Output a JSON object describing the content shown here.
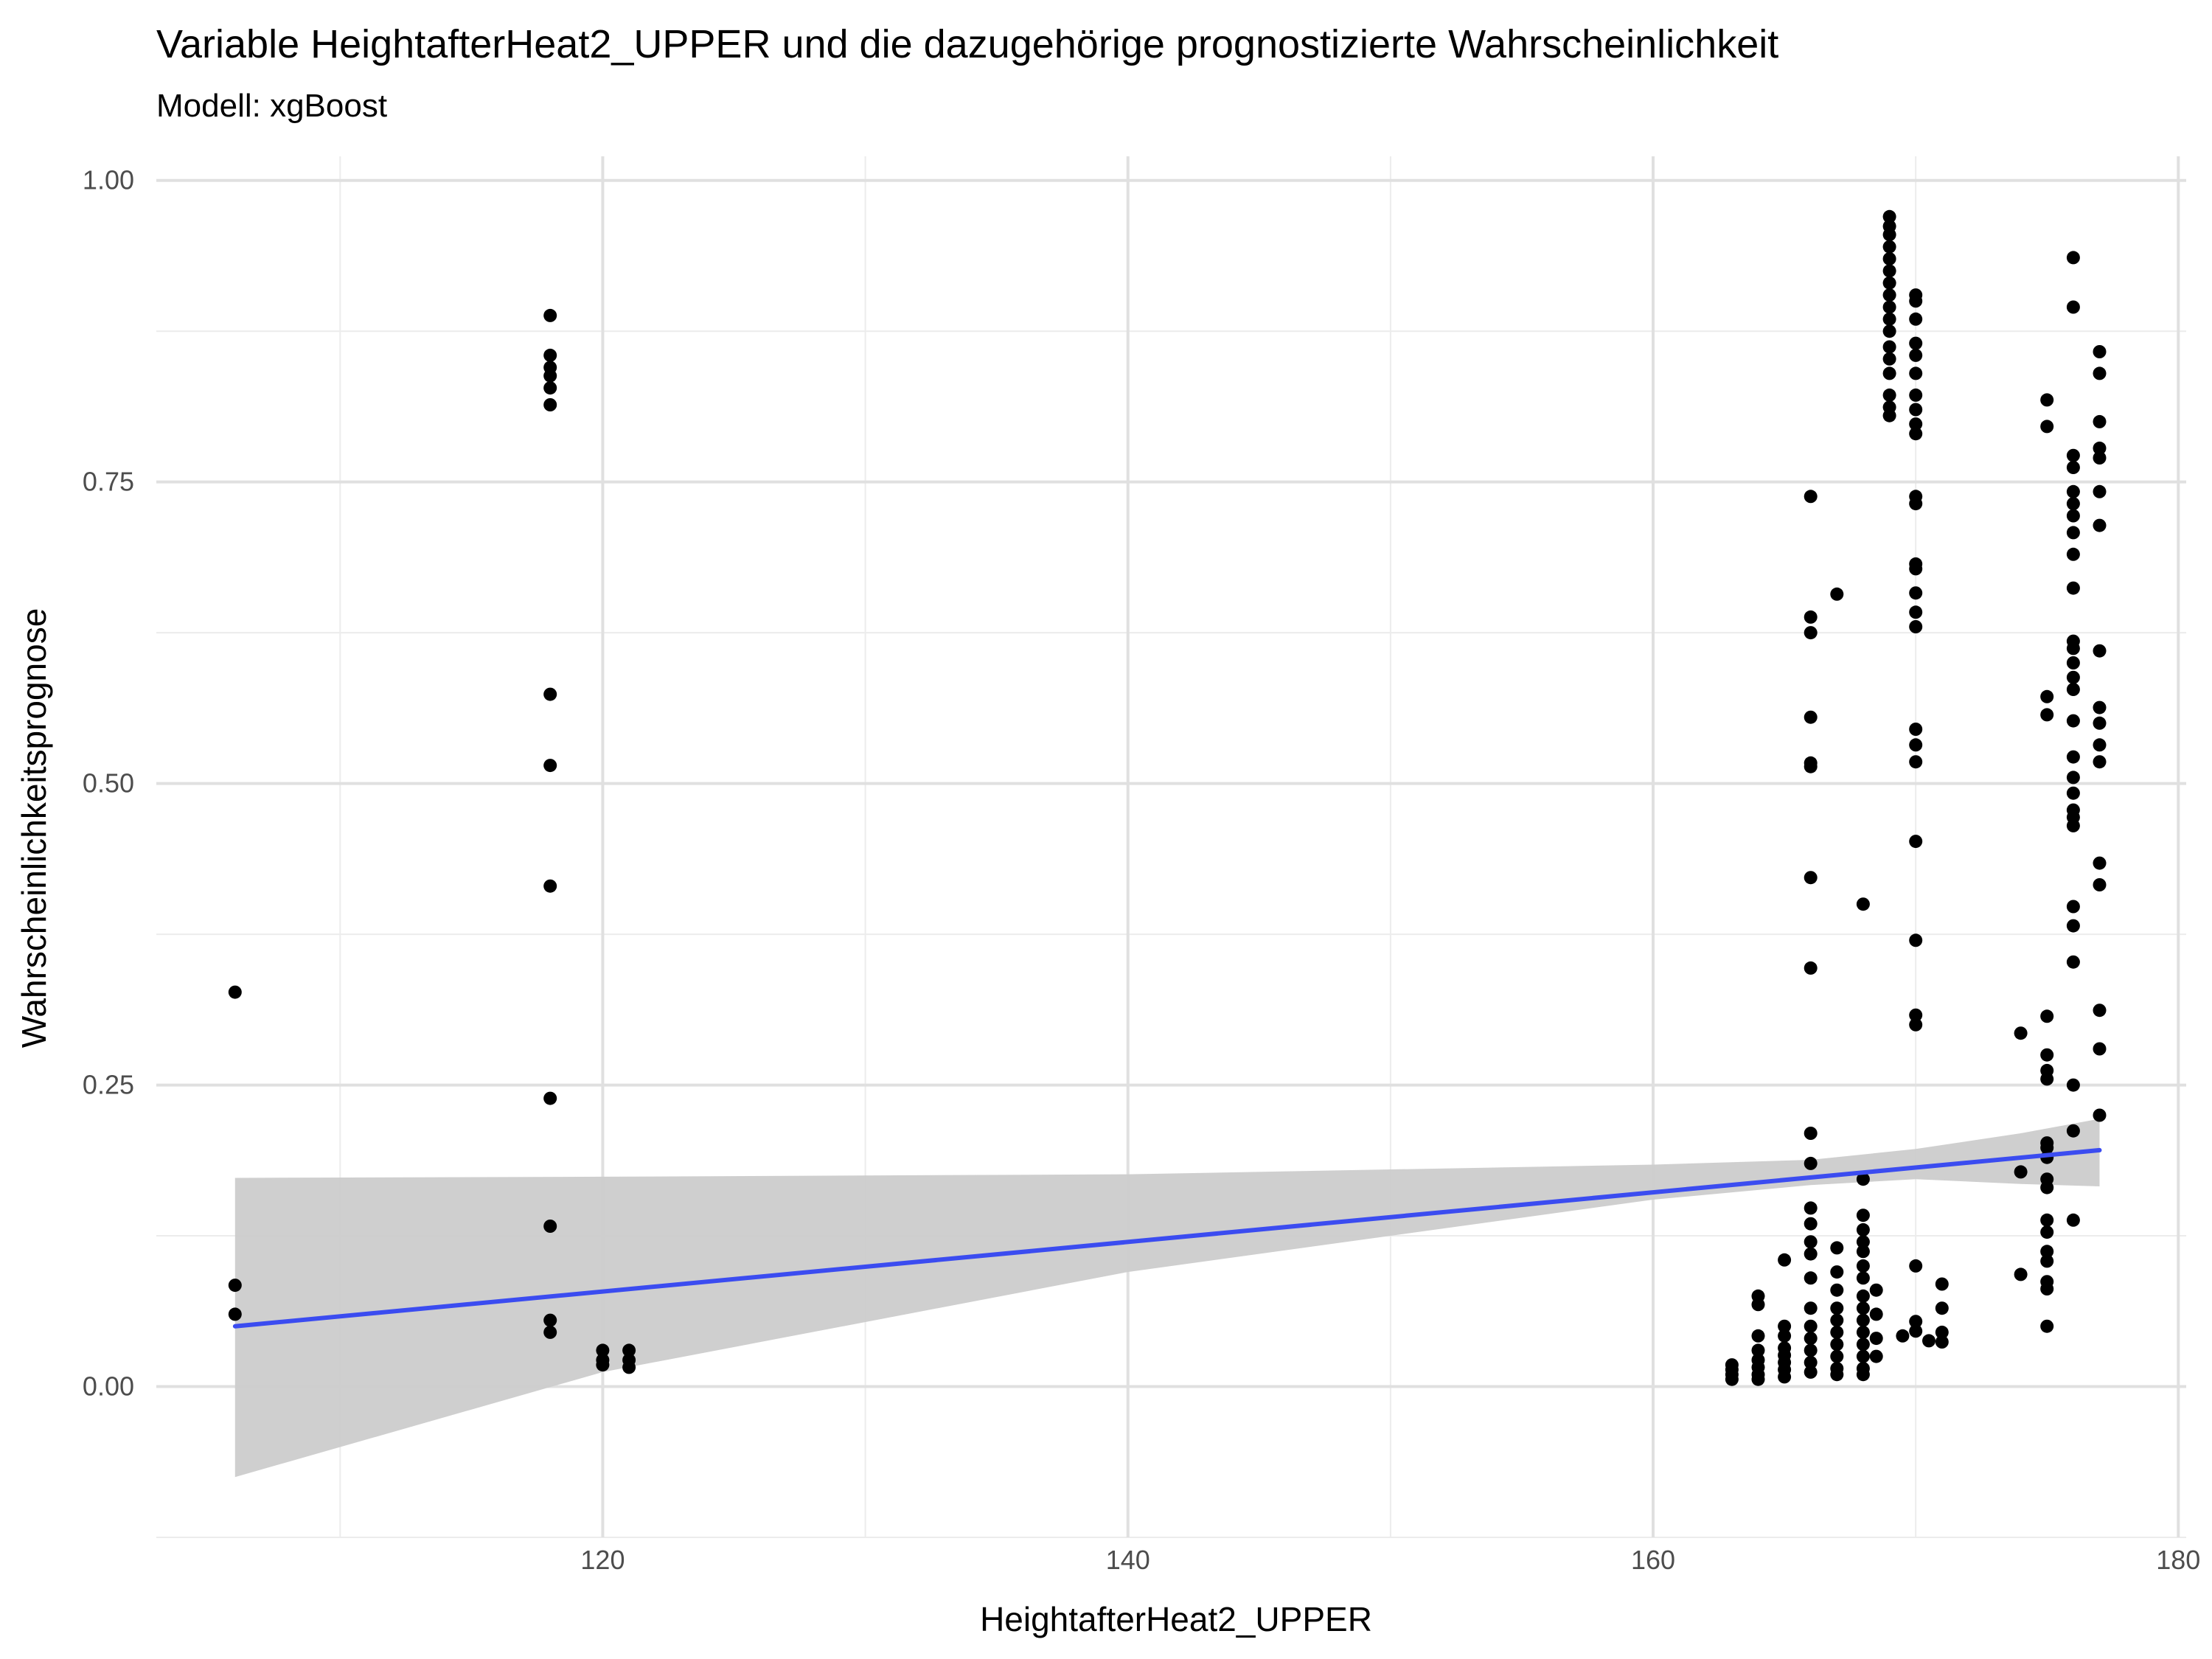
{
  "chart_data": {
    "type": "scatter",
    "title": "Variable HeightafterHeat2_UPPER und die dazugehörige prognostizierte Wahrscheinlichkeit",
    "subtitle": "Modell: xgBoost",
    "xlabel": "HeightafterHeat2_UPPER",
    "ylabel": "Wahrscheinlichkeitsprognose",
    "xlim": [
      103,
      180.3
    ],
    "ylim": [
      -0.125,
      1.02
    ],
    "x_ticks": [
      120,
      140,
      160,
      180
    ],
    "x_tick_labels": [
      "120",
      "140",
      "160",
      "180"
    ],
    "y_ticks": [
      0,
      0.25,
      0.5,
      0.75,
      1.0
    ],
    "y_tick_labels": [
      "0.00",
      "0.25",
      "0.50",
      "0.75",
      "1.00"
    ],
    "grid": true,
    "points_color": "#000000",
    "fit_color": "#3b4cf0",
    "ribbon_color": "#cccccc",
    "fit_line": {
      "x": [
        106,
        177
      ],
      "y": [
        0.05,
        0.196
      ]
    },
    "confidence_band": {
      "x": [
        106,
        120,
        140,
        160,
        166,
        170,
        174,
        177
      ],
      "lower": [
        -0.075,
        0.012,
        0.095,
        0.155,
        0.167,
        0.172,
        0.168,
        0.166
      ],
      "upper": [
        0.173,
        0.174,
        0.176,
        0.184,
        0.188,
        0.197,
        0.21,
        0.222
      ]
    },
    "points": [
      [
        106,
        0.327
      ],
      [
        106,
        0.084
      ],
      [
        106,
        0.06
      ],
      [
        118,
        0.888
      ],
      [
        118,
        0.855
      ],
      [
        118,
        0.845
      ],
      [
        118,
        0.838
      ],
      [
        118,
        0.828
      ],
      [
        118,
        0.814
      ],
      [
        118,
        0.574
      ],
      [
        118,
        0.515
      ],
      [
        118,
        0.415
      ],
      [
        118,
        0.239
      ],
      [
        118,
        0.133
      ],
      [
        118,
        0.055
      ],
      [
        118,
        0.045
      ],
      [
        120,
        0.03
      ],
      [
        120,
        0.022
      ],
      [
        120,
        0.018
      ],
      [
        121,
        0.03
      ],
      [
        121,
        0.022
      ],
      [
        121,
        0.016
      ],
      [
        163,
        0.018
      ],
      [
        163,
        0.014
      ],
      [
        163,
        0.01
      ],
      [
        163,
        0.006
      ],
      [
        164,
        0.075
      ],
      [
        164,
        0.068
      ],
      [
        164,
        0.042
      ],
      [
        164,
        0.03
      ],
      [
        164,
        0.022
      ],
      [
        164,
        0.016
      ],
      [
        164,
        0.01
      ],
      [
        164,
        0.006
      ],
      [
        165,
        0.105
      ],
      [
        165,
        0.05
      ],
      [
        165,
        0.042
      ],
      [
        165,
        0.032
      ],
      [
        165,
        0.026
      ],
      [
        165,
        0.02
      ],
      [
        165,
        0.014
      ],
      [
        165,
        0.008
      ],
      [
        166,
        0.738
      ],
      [
        166,
        0.638
      ],
      [
        166,
        0.625
      ],
      [
        166,
        0.555
      ],
      [
        166,
        0.517
      ],
      [
        166,
        0.514
      ],
      [
        166,
        0.422
      ],
      [
        166,
        0.347
      ],
      [
        166,
        0.21
      ],
      [
        166,
        0.185
      ],
      [
        166,
        0.148
      ],
      [
        166,
        0.135
      ],
      [
        166,
        0.12
      ],
      [
        166,
        0.11
      ],
      [
        166,
        0.09
      ],
      [
        166,
        0.065
      ],
      [
        166,
        0.05
      ],
      [
        166,
        0.04
      ],
      [
        166,
        0.03
      ],
      [
        166,
        0.02
      ],
      [
        166,
        0.012
      ],
      [
        167,
        0.657
      ],
      [
        167,
        0.115
      ],
      [
        167,
        0.095
      ],
      [
        167,
        0.08
      ],
      [
        167,
        0.065
      ],
      [
        167,
        0.055
      ],
      [
        167,
        0.045
      ],
      [
        167,
        0.035
      ],
      [
        167,
        0.025
      ],
      [
        167,
        0.015
      ],
      [
        167,
        0.01
      ],
      [
        168,
        0.4
      ],
      [
        168,
        0.172
      ],
      [
        168,
        0.142
      ],
      [
        168,
        0.13
      ],
      [
        168,
        0.12
      ],
      [
        168,
        0.112
      ],
      [
        168,
        0.1
      ],
      [
        168,
        0.09
      ],
      [
        168,
        0.075
      ],
      [
        168,
        0.065
      ],
      [
        168,
        0.055
      ],
      [
        168,
        0.045
      ],
      [
        168,
        0.035
      ],
      [
        168,
        0.025
      ],
      [
        168,
        0.015
      ],
      [
        168,
        0.01
      ],
      [
        168.5,
        0.08
      ],
      [
        168.5,
        0.06
      ],
      [
        168.5,
        0.04
      ],
      [
        168.5,
        0.025
      ],
      [
        169,
        0.97
      ],
      [
        169,
        0.962
      ],
      [
        169,
        0.955
      ],
      [
        169,
        0.945
      ],
      [
        169,
        0.935
      ],
      [
        169,
        0.925
      ],
      [
        169,
        0.915
      ],
      [
        169,
        0.905
      ],
      [
        169,
        0.895
      ],
      [
        169,
        0.885
      ],
      [
        169,
        0.875
      ],
      [
        169,
        0.862
      ],
      [
        169,
        0.852
      ],
      [
        169,
        0.84
      ],
      [
        169,
        0.822
      ],
      [
        169,
        0.812
      ],
      [
        169,
        0.805
      ],
      [
        169.5,
        0.042
      ],
      [
        170,
        0.905
      ],
      [
        170,
        0.9
      ],
      [
        170,
        0.885
      ],
      [
        170,
        0.865
      ],
      [
        170,
        0.855
      ],
      [
        170,
        0.84
      ],
      [
        170,
        0.822
      ],
      [
        170,
        0.81
      ],
      [
        170,
        0.798
      ],
      [
        170,
        0.79
      ],
      [
        170,
        0.738
      ],
      [
        170,
        0.732
      ],
      [
        170,
        0.682
      ],
      [
        170,
        0.678
      ],
      [
        170,
        0.658
      ],
      [
        170,
        0.642
      ],
      [
        170,
        0.63
      ],
      [
        170,
        0.545
      ],
      [
        170,
        0.532
      ],
      [
        170,
        0.518
      ],
      [
        170,
        0.452
      ],
      [
        170,
        0.37
      ],
      [
        170,
        0.308
      ],
      [
        170,
        0.3
      ],
      [
        170,
        0.1
      ],
      [
        170,
        0.054
      ],
      [
        170,
        0.046
      ],
      [
        170.5,
        0.038
      ],
      [
        171,
        0.085
      ],
      [
        171,
        0.065
      ],
      [
        171,
        0.045
      ],
      [
        171,
        0.037
      ],
      [
        174,
        0.293
      ],
      [
        174,
        0.178
      ],
      [
        174,
        0.093
      ],
      [
        175,
        0.818
      ],
      [
        175,
        0.796
      ],
      [
        175,
        0.572
      ],
      [
        175,
        0.557
      ],
      [
        175,
        0.307
      ],
      [
        175,
        0.275
      ],
      [
        175,
        0.262
      ],
      [
        175,
        0.255
      ],
      [
        175,
        0.202
      ],
      [
        175,
        0.198
      ],
      [
        175,
        0.19
      ],
      [
        175,
        0.172
      ],
      [
        175,
        0.165
      ],
      [
        175,
        0.138
      ],
      [
        175,
        0.128
      ],
      [
        175,
        0.112
      ],
      [
        175,
        0.104
      ],
      [
        175,
        0.087
      ],
      [
        175,
        0.081
      ],
      [
        175,
        0.05
      ],
      [
        176,
        0.936
      ],
      [
        176,
        0.895
      ],
      [
        176,
        0.772
      ],
      [
        176,
        0.762
      ],
      [
        176,
        0.742
      ],
      [
        176,
        0.732
      ],
      [
        176,
        0.722
      ],
      [
        176,
        0.708
      ],
      [
        176,
        0.69
      ],
      [
        176,
        0.662
      ],
      [
        176,
        0.618
      ],
      [
        176,
        0.612
      ],
      [
        176,
        0.6
      ],
      [
        176,
        0.588
      ],
      [
        176,
        0.578
      ],
      [
        176,
        0.552
      ],
      [
        176,
        0.522
      ],
      [
        176,
        0.505
      ],
      [
        176,
        0.492
      ],
      [
        176,
        0.478
      ],
      [
        176,
        0.472
      ],
      [
        176,
        0.465
      ],
      [
        176,
        0.398
      ],
      [
        176,
        0.382
      ],
      [
        176,
        0.352
      ],
      [
        176,
        0.25
      ],
      [
        176,
        0.212
      ],
      [
        176,
        0.138
      ],
      [
        177,
        0.858
      ],
      [
        177,
        0.84
      ],
      [
        177,
        0.8
      ],
      [
        177,
        0.778
      ],
      [
        177,
        0.77
      ],
      [
        177,
        0.742
      ],
      [
        177,
        0.714
      ],
      [
        177,
        0.61
      ],
      [
        177,
        0.563
      ],
      [
        177,
        0.55
      ],
      [
        177,
        0.532
      ],
      [
        177,
        0.518
      ],
      [
        177,
        0.434
      ],
      [
        177,
        0.416
      ],
      [
        177,
        0.312
      ],
      [
        177,
        0.28
      ],
      [
        177,
        0.225
      ]
    ]
  }
}
